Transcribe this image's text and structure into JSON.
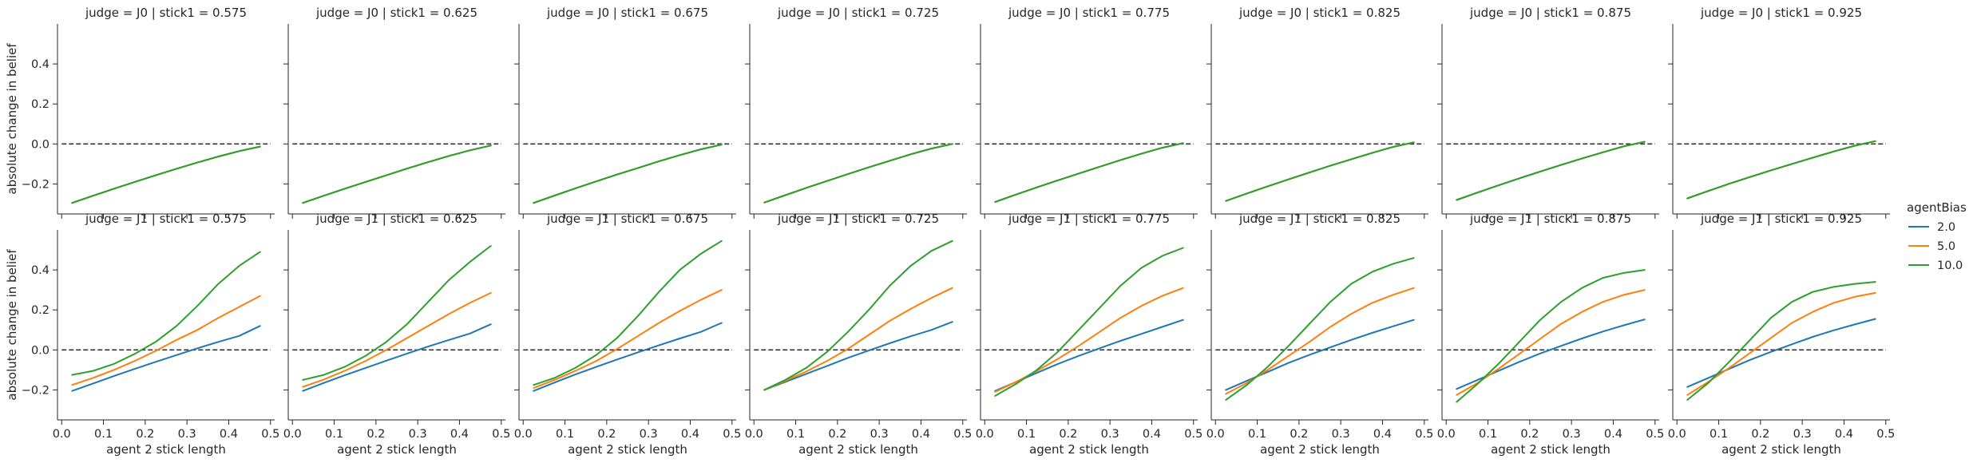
{
  "chart_data": {
    "type": "line",
    "layout": "facet-grid",
    "xlabel": "agent 2 stick length",
    "ylabel": "absolute change in belief",
    "xlim": [
      -0.01,
      0.51
    ],
    "ylim": [
      -0.35,
      0.6
    ],
    "x_ticks": [
      0.0,
      0.1,
      0.2,
      0.3,
      0.4,
      0.5
    ],
    "x_tick_labels": [
      "0.0",
      "0.1",
      "0.2",
      "0.3",
      "0.4",
      "0.5"
    ],
    "y_ticks": [
      -0.2,
      0.0,
      0.2,
      0.4
    ],
    "y_tick_labels": [
      "−0.2",
      "0.0",
      "0.2",
      "0.4"
    ],
    "reference_line": {
      "y": 0.0,
      "style": "dashed",
      "color": "#333333"
    },
    "grid": false,
    "legend": {
      "title": "agentBias",
      "placement": "right",
      "entries": [
        {
          "label": "2.0",
          "color": "#1f77b4"
        },
        {
          "label": "5.0",
          "color": "#ff7f0e"
        },
        {
          "label": "10.0",
          "color": "#2ca02c"
        }
      ]
    },
    "x": [
      0.025,
      0.075,
      0.125,
      0.175,
      0.225,
      0.275,
      0.325,
      0.375,
      0.425,
      0.475
    ],
    "panels": [
      {
        "title": "judge = J0 | stick1 = 0.575",
        "series": [
          {
            "name": "2.0",
            "color": "#1f77b4",
            "y": [
              -0.295,
              -0.259,
              -0.224,
              -0.19,
              -0.157,
              -0.124,
              -0.093,
              -0.063,
              -0.036,
              -0.013
            ]
          },
          {
            "name": "5.0",
            "color": "#ff7f0e",
            "y": [
              -0.295,
              -0.259,
              -0.224,
              -0.19,
              -0.157,
              -0.124,
              -0.093,
              -0.063,
              -0.036,
              -0.013
            ]
          },
          {
            "name": "10.0",
            "color": "#2ca02c",
            "y": [
              -0.295,
              -0.259,
              -0.224,
              -0.19,
              -0.157,
              -0.124,
              -0.093,
              -0.063,
              -0.036,
              -0.013
            ]
          }
        ]
      },
      {
        "title": "judge = J0 | stick1 = 0.625",
        "series": [
          {
            "name": "2.0",
            "color": "#1f77b4",
            "y": [
              -0.295,
              -0.259,
              -0.224,
              -0.19,
              -0.157,
              -0.123,
              -0.091,
              -0.06,
              -0.032,
              -0.008
            ]
          },
          {
            "name": "5.0",
            "color": "#ff7f0e",
            "y": [
              -0.295,
              -0.259,
              -0.224,
              -0.19,
              -0.157,
              -0.123,
              -0.091,
              -0.06,
              -0.032,
              -0.008
            ]
          },
          {
            "name": "10.0",
            "color": "#2ca02c",
            "y": [
              -0.295,
              -0.259,
              -0.224,
              -0.19,
              -0.157,
              -0.123,
              -0.091,
              -0.06,
              -0.032,
              -0.008
            ]
          }
        ]
      },
      {
        "title": "judge = J0 | stick1 = 0.675",
        "series": [
          {
            "name": "2.0",
            "color": "#1f77b4",
            "y": [
              -0.295,
              -0.258,
              -0.222,
              -0.187,
              -0.153,
              -0.12,
              -0.087,
              -0.056,
              -0.027,
              -0.003
            ]
          },
          {
            "name": "5.0",
            "color": "#ff7f0e",
            "y": [
              -0.295,
              -0.258,
              -0.222,
              -0.187,
              -0.153,
              -0.12,
              -0.087,
              -0.056,
              -0.027,
              -0.003
            ]
          },
          {
            "name": "10.0",
            "color": "#2ca02c",
            "y": [
              -0.295,
              -0.258,
              -0.222,
              -0.187,
              -0.153,
              -0.12,
              -0.087,
              -0.056,
              -0.027,
              -0.003
            ]
          }
        ]
      },
      {
        "title": "judge = J0 | stick1 = 0.725",
        "series": [
          {
            "name": "2.0",
            "color": "#1f77b4",
            "y": [
              -0.293,
              -0.256,
              -0.22,
              -0.185,
              -0.151,
              -0.117,
              -0.084,
              -0.052,
              -0.023,
              0.0
            ]
          },
          {
            "name": "5.0",
            "color": "#ff7f0e",
            "y": [
              -0.293,
              -0.256,
              -0.22,
              -0.185,
              -0.151,
              -0.117,
              -0.084,
              -0.052,
              -0.023,
              0.0
            ]
          },
          {
            "name": "10.0",
            "color": "#2ca02c",
            "y": [
              -0.293,
              -0.256,
              -0.22,
              -0.185,
              -0.151,
              -0.117,
              -0.084,
              -0.052,
              -0.023,
              0.0
            ]
          }
        ]
      },
      {
        "title": "judge = J0 | stick1 = 0.775",
        "series": [
          {
            "name": "2.0",
            "color": "#1f77b4",
            "y": [
              -0.29,
              -0.253,
              -0.217,
              -0.182,
              -0.148,
              -0.114,
              -0.081,
              -0.049,
              -0.019,
              0.004
            ]
          },
          {
            "name": "5.0",
            "color": "#ff7f0e",
            "y": [
              -0.29,
              -0.253,
              -0.217,
              -0.182,
              -0.148,
              -0.114,
              -0.081,
              -0.049,
              -0.019,
              0.004
            ]
          },
          {
            "name": "10.0",
            "color": "#2ca02c",
            "y": [
              -0.29,
              -0.253,
              -0.217,
              -0.182,
              -0.148,
              -0.114,
              -0.081,
              -0.049,
              -0.019,
              0.004
            ]
          }
        ]
      },
      {
        "title": "judge = J0 | stick1 = 0.825",
        "series": [
          {
            "name": "2.0",
            "color": "#1f77b4",
            "y": [
              -0.285,
              -0.248,
              -0.212,
              -0.177,
              -0.143,
              -0.109,
              -0.077,
              -0.045,
              -0.015,
              0.008
            ]
          },
          {
            "name": "5.0",
            "color": "#ff7f0e",
            "y": [
              -0.285,
              -0.248,
              -0.212,
              -0.177,
              -0.143,
              -0.109,
              -0.077,
              -0.045,
              -0.015,
              0.008
            ]
          },
          {
            "name": "10.0",
            "color": "#2ca02c",
            "y": [
              -0.285,
              -0.248,
              -0.212,
              -0.177,
              -0.143,
              -0.109,
              -0.077,
              -0.045,
              -0.015,
              0.008
            ]
          }
        ]
      },
      {
        "title": "judge = J0 | stick1 = 0.875",
        "series": [
          {
            "name": "2.0",
            "color": "#1f77b4",
            "y": [
              -0.28,
              -0.243,
              -0.207,
              -0.172,
              -0.138,
              -0.105,
              -0.073,
              -0.042,
              -0.012,
              0.011
            ]
          },
          {
            "name": "5.0",
            "color": "#ff7f0e",
            "y": [
              -0.28,
              -0.243,
              -0.207,
              -0.172,
              -0.138,
              -0.105,
              -0.073,
              -0.042,
              -0.012,
              0.011
            ]
          },
          {
            "name": "10.0",
            "color": "#2ca02c",
            "y": [
              -0.28,
              -0.243,
              -0.207,
              -0.172,
              -0.138,
              -0.105,
              -0.073,
              -0.042,
              -0.012,
              0.011
            ]
          }
        ]
      },
      {
        "title": "judge = J0 | stick1 = 0.925",
        "series": [
          {
            "name": "2.0",
            "color": "#1f77b4",
            "y": [
              -0.272,
              -0.235,
              -0.199,
              -0.165,
              -0.132,
              -0.1,
              -0.069,
              -0.038,
              -0.009,
              0.014
            ]
          },
          {
            "name": "5.0",
            "color": "#ff7f0e",
            "y": [
              -0.272,
              -0.235,
              -0.199,
              -0.165,
              -0.132,
              -0.1,
              -0.069,
              -0.038,
              -0.009,
              0.014
            ]
          },
          {
            "name": "10.0",
            "color": "#2ca02c",
            "y": [
              -0.272,
              -0.235,
              -0.199,
              -0.165,
              -0.132,
              -0.1,
              -0.069,
              -0.038,
              -0.009,
              0.014
            ]
          }
        ]
      },
      {
        "title": "judge = J1 | stick1 = 0.575",
        "series": [
          {
            "name": "2.0",
            "color": "#1f77b4",
            "y": [
              -0.205,
              -0.168,
              -0.131,
              -0.095,
              -0.06,
              -0.026,
              0.008,
              0.04,
              0.07,
              0.12
            ]
          },
          {
            "name": "5.0",
            "color": "#ff7f0e",
            "y": [
              -0.175,
              -0.14,
              -0.1,
              -0.055,
              -0.005,
              0.05,
              0.1,
              0.16,
              0.215,
              0.27
            ]
          },
          {
            "name": "10.0",
            "color": "#2ca02c",
            "y": [
              -0.125,
              -0.105,
              -0.07,
              -0.02,
              0.04,
              0.12,
              0.22,
              0.33,
              0.42,
              0.49
            ]
          }
        ]
      },
      {
        "title": "judge = J1 | stick1 = 0.625",
        "series": [
          {
            "name": "2.0",
            "color": "#1f77b4",
            "y": [
              -0.205,
              -0.165,
              -0.127,
              -0.09,
              -0.054,
              -0.018,
              0.017,
              0.05,
              0.082,
              0.128
            ]
          },
          {
            "name": "5.0",
            "color": "#ff7f0e",
            "y": [
              -0.185,
              -0.148,
              -0.105,
              -0.055,
              0.0,
              0.06,
              0.12,
              0.18,
              0.235,
              0.285
            ]
          },
          {
            "name": "10.0",
            "color": "#2ca02c",
            "y": [
              -0.15,
              -0.125,
              -0.085,
              -0.03,
              0.04,
              0.13,
              0.24,
              0.35,
              0.44,
              0.52
            ]
          }
        ]
      },
      {
        "title": "judge = J1 | stick1 = 0.675",
        "series": [
          {
            "name": "2.0",
            "color": "#1f77b4",
            "y": [
              -0.205,
              -0.163,
              -0.123,
              -0.085,
              -0.048,
              -0.012,
              0.023,
              0.057,
              0.09,
              0.135
            ]
          },
          {
            "name": "5.0",
            "color": "#ff7f0e",
            "y": [
              -0.19,
              -0.15,
              -0.105,
              -0.055,
              0.005,
              0.07,
              0.135,
              0.195,
              0.25,
              0.3
            ]
          },
          {
            "name": "10.0",
            "color": "#2ca02c",
            "y": [
              -0.175,
              -0.14,
              -0.09,
              -0.025,
              0.06,
              0.17,
              0.29,
              0.4,
              0.48,
              0.545
            ]
          }
        ]
      },
      {
        "title": "judge = J1 | stick1 = 0.725",
        "series": [
          {
            "name": "2.0",
            "color": "#1f77b4",
            "y": [
              -0.2,
              -0.16,
              -0.12,
              -0.08,
              -0.04,
              -0.003,
              0.033,
              0.068,
              0.1,
              0.14
            ]
          },
          {
            "name": "5.0",
            "color": "#ff7f0e",
            "y": [
              -0.2,
              -0.155,
              -0.108,
              -0.055,
              0.005,
              0.075,
              0.145,
              0.205,
              0.26,
              0.31
            ]
          },
          {
            "name": "10.0",
            "color": "#2ca02c",
            "y": [
              -0.2,
              -0.15,
              -0.09,
              -0.01,
              0.09,
              0.2,
              0.32,
              0.42,
              0.495,
              0.545
            ]
          }
        ]
      },
      {
        "title": "judge = J1 | stick1 = 0.775",
        "series": [
          {
            "name": "2.0",
            "color": "#1f77b4",
            "y": [
              -0.205,
              -0.16,
              -0.115,
              -0.07,
              -0.03,
              0.008,
              0.045,
              0.08,
              0.115,
              0.15
            ]
          },
          {
            "name": "5.0",
            "color": "#ff7f0e",
            "y": [
              -0.21,
              -0.16,
              -0.105,
              -0.045,
              0.02,
              0.09,
              0.16,
              0.22,
              0.27,
              0.31
            ]
          },
          {
            "name": "10.0",
            "color": "#2ca02c",
            "y": [
              -0.23,
              -0.17,
              -0.1,
              -0.01,
              0.1,
              0.21,
              0.32,
              0.41,
              0.47,
              0.51
            ]
          }
        ]
      },
      {
        "title": "judge = J1 | stick1 = 0.825",
        "series": [
          {
            "name": "2.0",
            "color": "#1f77b4",
            "y": [
              -0.2,
              -0.155,
              -0.11,
              -0.065,
              -0.025,
              0.013,
              0.05,
              0.085,
              0.118,
              0.15
            ]
          },
          {
            "name": "5.0",
            "color": "#ff7f0e",
            "y": [
              -0.22,
              -0.165,
              -0.1,
              -0.03,
              0.04,
              0.115,
              0.18,
              0.235,
              0.275,
              0.31
            ]
          },
          {
            "name": "10.0",
            "color": "#2ca02c",
            "y": [
              -0.25,
              -0.175,
              -0.085,
              0.02,
              0.13,
              0.24,
              0.33,
              0.39,
              0.43,
              0.46
            ]
          }
        ]
      },
      {
        "title": "judge = J1 | stick1 = 0.875",
        "series": [
          {
            "name": "2.0",
            "color": "#1f77b4",
            "y": [
              -0.195,
              -0.15,
              -0.105,
              -0.06,
              -0.018,
              0.02,
              0.057,
              0.092,
              0.123,
              0.152
            ]
          },
          {
            "name": "5.0",
            "color": "#ff7f0e",
            "y": [
              -0.225,
              -0.165,
              -0.095,
              -0.02,
              0.055,
              0.13,
              0.19,
              0.24,
              0.275,
              0.3
            ]
          },
          {
            "name": "10.0",
            "color": "#2ca02c",
            "y": [
              -0.26,
              -0.17,
              -0.07,
              0.04,
              0.15,
              0.24,
              0.31,
              0.36,
              0.385,
              0.4
            ]
          }
        ]
      },
      {
        "title": "judge = J1 | stick1 = 0.925",
        "series": [
          {
            "name": "2.0",
            "color": "#1f77b4",
            "y": [
              -0.185,
              -0.14,
              -0.095,
              -0.05,
              -0.01,
              0.028,
              0.065,
              0.098,
              0.127,
              0.155
            ]
          },
          {
            "name": "5.0",
            "color": "#ff7f0e",
            "y": [
              -0.225,
              -0.16,
              -0.09,
              -0.015,
              0.06,
              0.135,
              0.19,
              0.235,
              0.265,
              0.285
            ]
          },
          {
            "name": "10.0",
            "color": "#2ca02c",
            "y": [
              -0.25,
              -0.165,
              -0.06,
              0.05,
              0.16,
              0.24,
              0.29,
              0.315,
              0.33,
              0.34
            ]
          }
        ]
      }
    ]
  }
}
